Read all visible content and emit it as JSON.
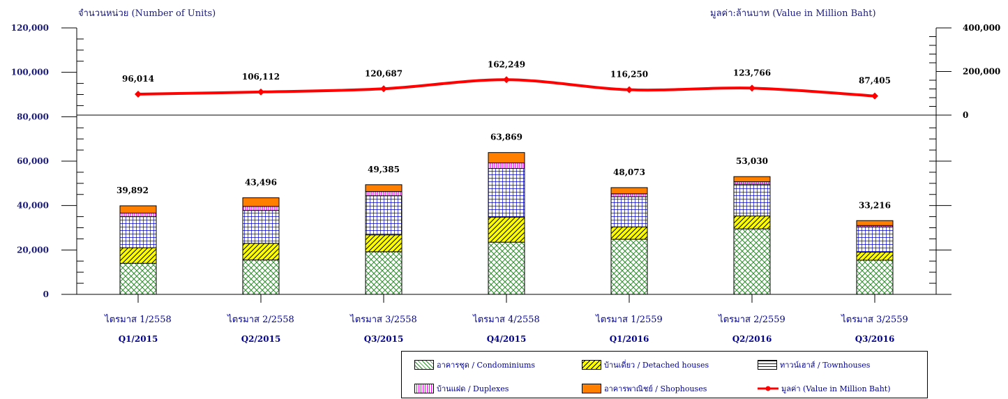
{
  "chart_data": {
    "type": "bar",
    "stacked": true,
    "left_axis_title": "จำนวนหน่วย (Number of Units)",
    "right_axis_title": "มูลค่า:ล้านบาท (Value in Million Baht)",
    "left_ylim": [
      0,
      120000
    ],
    "left_ticks": [
      "0",
      "20,000",
      "40,000",
      "60,000",
      "80,000",
      "100,000",
      "120,000"
    ],
    "right_ylim": [
      0,
      400000
    ],
    "right_ticks": [
      "0",
      "200,000",
      "400,000"
    ],
    "categories_thai": [
      "ไตรมาส 1/2558",
      "ไตรมาส 2/2558",
      "ไตรมาส 3/2558",
      "ไตรมาส 4/2558",
      "ไตรมาส 1/2559",
      "ไตรมาส 2/2559",
      "ไตรมาส 3/2559"
    ],
    "categories": [
      "Q1/2015",
      "Q2/2015",
      "Q3/2015",
      "Q4/2015",
      "Q1/2016",
      "Q2/2016",
      "Q3/2016"
    ],
    "series": [
      {
        "name": "อาคารชุด / Condominiums",
        "color": "#2e8b2e",
        "pattern": "crosshatch",
        "values": [
          14000,
          15500,
          19200,
          23500,
          24800,
          29500,
          15400
        ]
      },
      {
        "name": "บ้านเดี่ยว / Detached houses",
        "color": "#ffff00",
        "pattern": "diagonal",
        "values": [
          7000,
          7500,
          7600,
          11300,
          5600,
          5800,
          3600
        ]
      },
      {
        "name": "ทาวน์เฮาส์ / Townhouses",
        "color": "#0000cc",
        "pattern": "grid",
        "values": [
          14000,
          14800,
          17600,
          21900,
          13600,
          14300,
          11400
        ]
      },
      {
        "name": "บ้านแฝด / Duplexes",
        "color": "#ff00ff",
        "pattern": "vertical",
        "values": [
          1600,
          1800,
          1900,
          2500,
          1300,
          1100,
          600
        ]
      },
      {
        "name": "อาคารพาณิชย์ / Shophouses",
        "color": "#ff8000",
        "pattern": "solid",
        "values": [
          3292,
          3896,
          3085,
          4669,
          2773,
          2330,
          2216
        ]
      }
    ],
    "totals": [
      39892,
      43496,
      49385,
      63869,
      48073,
      53030,
      33216
    ],
    "total_labels": [
      "39,892",
      "43,496",
      "49,385",
      "63,869",
      "48,073",
      "53,030",
      "33,216"
    ],
    "line": {
      "name": "มูลค่า (Value in Million Baht)",
      "color": "#ff0000",
      "values": [
        96014,
        106112,
        120687,
        162249,
        116250,
        123766,
        87405
      ],
      "labels": [
        "96,014",
        "106,112",
        "120,687",
        "162,249",
        "116,250",
        "123,766",
        "87,405"
      ]
    },
    "legend_position": "bottom-right"
  }
}
